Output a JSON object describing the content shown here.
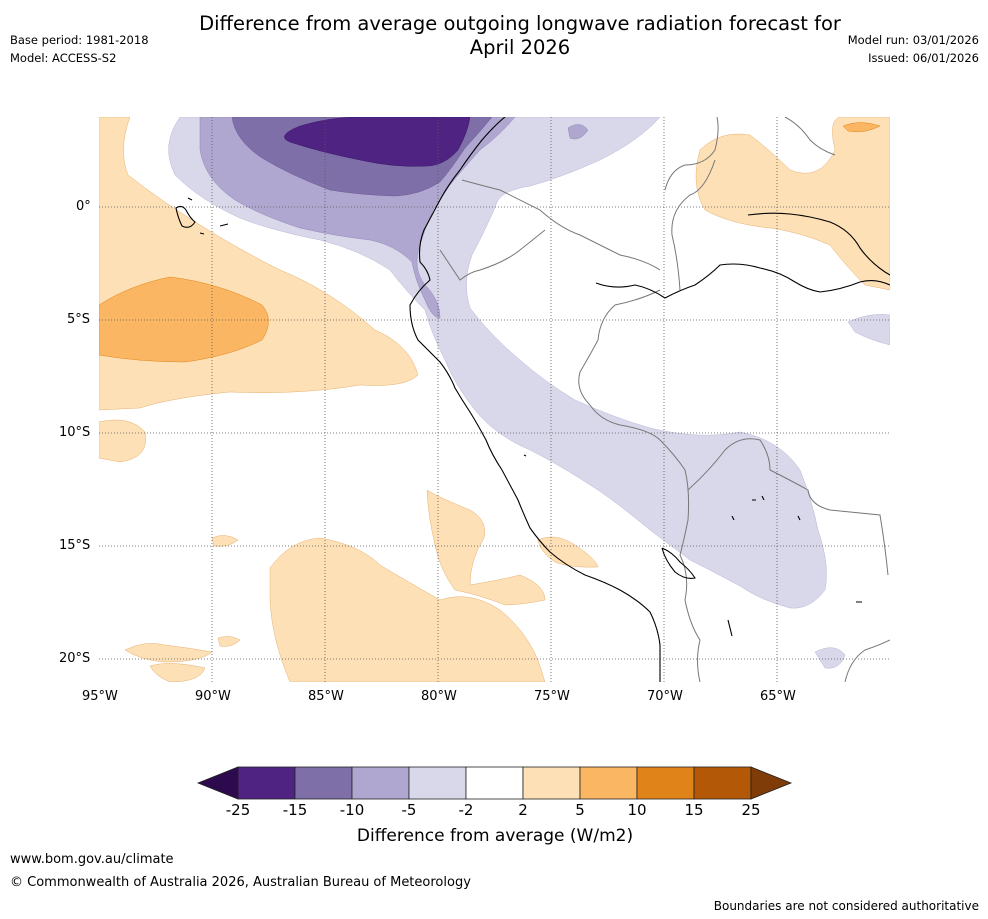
{
  "header": {
    "title_line1": "Difference from average outgoing longwave radiation forecast for",
    "title_line2": "April 2026",
    "base_period": "Base period: 1981-2018",
    "model": "Model: ACCESS-S2",
    "model_run": "Model run: 03/01/2026",
    "issued": "Issued: 06/01/2026"
  },
  "map": {
    "lat_labels": [
      "0°",
      "5°S",
      "10°S",
      "15°S",
      "20°S"
    ],
    "lon_labels": [
      "95°W",
      "90°W",
      "85°W",
      "80°W",
      "75°W",
      "70°W",
      "65°W"
    ],
    "gridlines": "dotted"
  },
  "legend": {
    "title": "Difference from average (W/m2)",
    "tick_labels": [
      "-25",
      "-15",
      "-10",
      "-5",
      "-2",
      "2",
      "5",
      "10",
      "15",
      "25"
    ],
    "colors": {
      "below_min": "#2d0a4e",
      "bins": [
        "#4f2382",
        "#7f6fa8",
        "#b0a7d0",
        "#d9d8eb",
        "#ffffff",
        "#fde0b6",
        "#fbb663",
        "#e0841a",
        "#b35806"
      ],
      "above_max": "#7f3b08"
    }
  },
  "footer": {
    "url": "www.bom.gov.au/climate",
    "copyright": "© Commonwealth of Australia 2026, Australian Bureau of Meteorology",
    "disclaimer": "Boundaries are not considered authoritative"
  }
}
